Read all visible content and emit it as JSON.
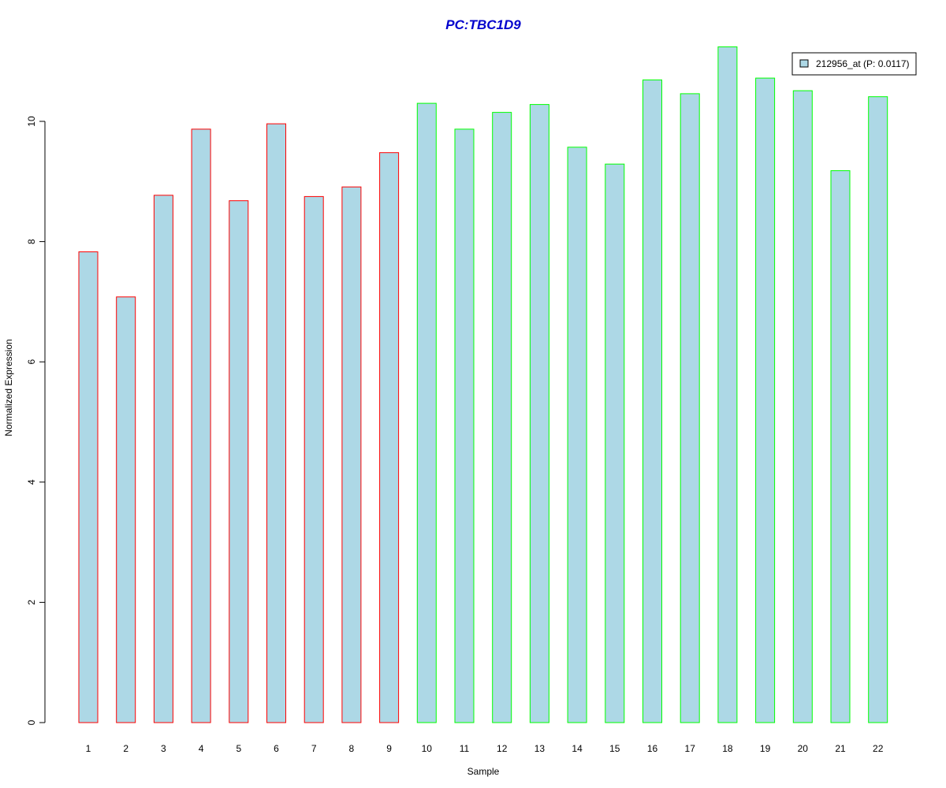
{
  "chart_data": {
    "type": "bar",
    "title": "PC:TBC1D9",
    "xlabel": "Sample",
    "ylabel": "Normalized Expression",
    "categories": [
      "1",
      "2",
      "3",
      "4",
      "5",
      "6",
      "7",
      "8",
      "9",
      "10",
      "11",
      "12",
      "13",
      "14",
      "15",
      "16",
      "17",
      "18",
      "19",
      "20",
      "21",
      "22"
    ],
    "values": [
      7.83,
      7.08,
      8.77,
      9.87,
      8.68,
      9.96,
      8.75,
      8.91,
      9.48,
      10.3,
      9.87,
      10.15,
      10.28,
      9.57,
      9.29,
      10.69,
      10.46,
      11.24,
      10.72,
      10.51,
      9.18,
      10.41
    ],
    "group": [
      "a",
      "a",
      "a",
      "a",
      "a",
      "a",
      "a",
      "a",
      "a",
      "b",
      "b",
      "b",
      "b",
      "b",
      "b",
      "b",
      "b",
      "b",
      "b",
      "b",
      "b",
      "b"
    ],
    "ylim": [
      0,
      11.5
    ],
    "yticks": [
      "0",
      "2",
      "4",
      "6",
      "8",
      "10"
    ],
    "grid": false,
    "legend": {
      "position": "top-right",
      "entries": [
        {
          "label": "212956_at (P: 0.0117)",
          "color": "#add8e6"
        }
      ]
    },
    "colors": {
      "title": "#0000cd",
      "bar_fill": "#add8e6",
      "border_group_a": "#ff0000",
      "border_group_b": "#00ff00",
      "axis": "#000000"
    }
  }
}
